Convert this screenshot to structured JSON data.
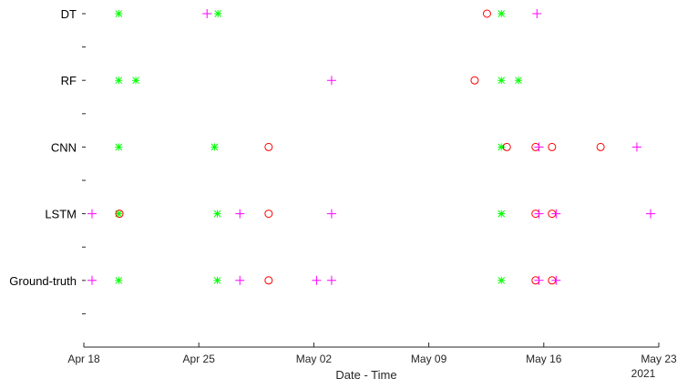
{
  "chart_data": {
    "type": "scatter",
    "xlabel": "Date - Time",
    "year_label": "2021",
    "x_ticks": [
      "2021-04-18",
      "2021-04-25",
      "2021-05-02",
      "2021-05-09",
      "2021-05-16",
      "2021-05-23"
    ],
    "x_tick_labels": [
      "Apr 18",
      "Apr 25",
      "May 02",
      "May 09",
      "May 16",
      "May 23"
    ],
    "xlim": [
      "2021-04-18",
      "2021-05-23"
    ],
    "y_categories": [
      "DT",
      "RF",
      "CNN",
      "LSTM",
      "Ground-truth"
    ],
    "grid": false,
    "legend": "none",
    "marker_colors": {
      "circle": "#ff0000",
      "plus": "#ff00ff",
      "star": "#00ff00"
    },
    "points": {
      "DT": [
        {
          "marker": "star",
          "x": "2021-04-20 03:00"
        },
        {
          "marker": "plus",
          "x": "2021-04-25 12:00"
        },
        {
          "marker": "star",
          "x": "2021-04-26 04:00"
        },
        {
          "marker": "circle",
          "x": "2021-05-12 13:00"
        },
        {
          "marker": "star",
          "x": "2021-05-13 10:00"
        },
        {
          "marker": "plus",
          "x": "2021-05-15 14:00"
        }
      ],
      "RF": [
        {
          "marker": "star",
          "x": "2021-04-20 03:00"
        },
        {
          "marker": "star",
          "x": "2021-04-21 04:00"
        },
        {
          "marker": "plus",
          "x": "2021-05-03 02:00"
        },
        {
          "marker": "circle",
          "x": "2021-05-11 19:00"
        },
        {
          "marker": "star",
          "x": "2021-05-13 10:00"
        },
        {
          "marker": "star",
          "x": "2021-05-14 11:00"
        }
      ],
      "CNN": [
        {
          "marker": "star",
          "x": "2021-04-20 03:00"
        },
        {
          "marker": "star",
          "x": "2021-04-25 23:00"
        },
        {
          "marker": "circle",
          "x": "2021-04-29 06:00"
        },
        {
          "marker": "star",
          "x": "2021-05-13 10:00"
        },
        {
          "marker": "circle",
          "x": "2021-05-13 18:00"
        },
        {
          "marker": "circle",
          "x": "2021-05-15 12:00"
        },
        {
          "marker": "plus",
          "x": "2021-05-15 17:00"
        },
        {
          "marker": "circle",
          "x": "2021-05-16 12:00"
        },
        {
          "marker": "circle",
          "x": "2021-05-19 11:00"
        },
        {
          "marker": "plus",
          "x": "2021-05-21 16:00"
        }
      ],
      "LSTM": [
        {
          "marker": "plus",
          "x": "2021-04-18 12:00"
        },
        {
          "marker": "star",
          "x": "2021-04-20 03:00"
        },
        {
          "marker": "circle",
          "x": "2021-04-20 04:00"
        },
        {
          "marker": "star",
          "x": "2021-04-26 03:00"
        },
        {
          "marker": "plus",
          "x": "2021-04-27 12:00"
        },
        {
          "marker": "circle",
          "x": "2021-04-29 06:00"
        },
        {
          "marker": "plus",
          "x": "2021-05-03 02:00"
        },
        {
          "marker": "star",
          "x": "2021-05-13 10:00"
        },
        {
          "marker": "circle",
          "x": "2021-05-15 12:00"
        },
        {
          "marker": "plus",
          "x": "2021-05-15 17:00"
        },
        {
          "marker": "circle",
          "x": "2021-05-16 12:00"
        },
        {
          "marker": "plus",
          "x": "2021-05-16 18:00"
        },
        {
          "marker": "plus",
          "x": "2021-05-22 12:00"
        }
      ],
      "Ground-truth": [
        {
          "marker": "plus",
          "x": "2021-04-18 12:00"
        },
        {
          "marker": "star",
          "x": "2021-04-20 03:00"
        },
        {
          "marker": "star",
          "x": "2021-04-26 03:00"
        },
        {
          "marker": "plus",
          "x": "2021-04-27 12:00"
        },
        {
          "marker": "circle",
          "x": "2021-04-29 06:00"
        },
        {
          "marker": "plus",
          "x": "2021-05-02 04:00"
        },
        {
          "marker": "plus",
          "x": "2021-05-03 02:00"
        },
        {
          "marker": "star",
          "x": "2021-05-13 10:00"
        },
        {
          "marker": "circle",
          "x": "2021-05-15 12:00"
        },
        {
          "marker": "plus",
          "x": "2021-05-15 17:00"
        },
        {
          "marker": "circle",
          "x": "2021-05-16 12:00"
        },
        {
          "marker": "plus",
          "x": "2021-05-16 18:00"
        }
      ]
    }
  }
}
